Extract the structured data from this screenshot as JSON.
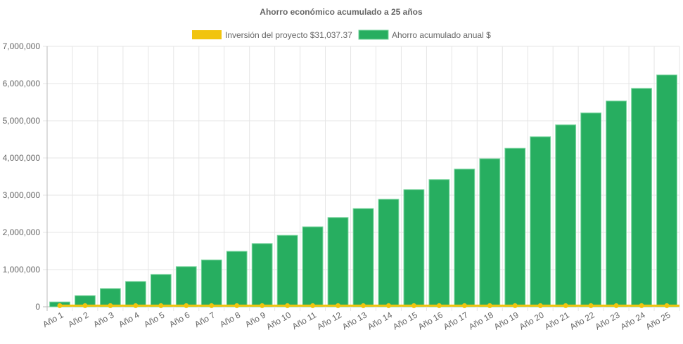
{
  "chart_data": {
    "type": "bar",
    "title": "Ahorro económico acumulado a 25 años",
    "categories": [
      "Año 1",
      "Año 2",
      "Año 3",
      "Año 4",
      "Año 5",
      "Año 6",
      "Año 7",
      "Año 8",
      "Año 9",
      "Año 10",
      "Año 11",
      "Año 12",
      "Año 13",
      "Año 14",
      "Año 15",
      "Año 16",
      "Año 17",
      "Año 18",
      "Año 19",
      "Año 20",
      "Año 21",
      "Año 22",
      "Año 23",
      "Año 24",
      "Año 25"
    ],
    "series": [
      {
        "name": "Inversión del proyecto $31,037.37",
        "type": "line",
        "color": "#f1c40f",
        "values": [
          31037.37,
          31037.37,
          31037.37,
          31037.37,
          31037.37,
          31037.37,
          31037.37,
          31037.37,
          31037.37,
          31037.37,
          31037.37,
          31037.37,
          31037.37,
          31037.37,
          31037.37,
          31037.37,
          31037.37,
          31037.37,
          31037.37,
          31037.37,
          31037.37,
          31037.37,
          31037.37,
          31037.37,
          31037.37
        ]
      },
      {
        "name": "Ahorro acumulado anual $",
        "type": "bar",
        "color": "#27ae60",
        "values": [
          130000,
          300000,
          490000,
          680000,
          870000,
          1080000,
          1260000,
          1490000,
          1700000,
          1920000,
          2150000,
          2400000,
          2640000,
          2890000,
          3150000,
          3420000,
          3700000,
          3980000,
          4260000,
          4570000,
          4890000,
          5210000,
          5530000,
          5870000,
          6230000
        ]
      }
    ],
    "yticks": [
      "0",
      "1,000,000",
      "2,000,000",
      "3,000,000",
      "4,000,000",
      "5,000,000",
      "6,000,000",
      "7,000,000"
    ],
    "ylim": [
      0,
      7000000
    ],
    "grid": true,
    "legend": "top"
  }
}
